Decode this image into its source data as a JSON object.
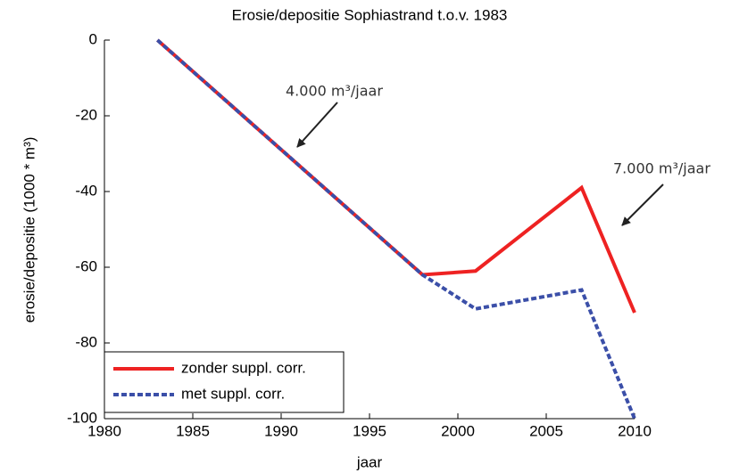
{
  "chart_data": {
    "type": "line",
    "title": "Erosie/depositie Sophiastrand t.o.v. 1983",
    "x_label": "jaar",
    "y_label": "erosie/depositie (1000 * m³)",
    "x": [
      1983,
      1998,
      2001,
      2007,
      2010
    ],
    "series": [
      {
        "name": "zonder suppl. corr.",
        "color": "#ee2222",
        "dash": false,
        "values": [
          0,
          -62,
          -61,
          -39,
          -72
        ]
      },
      {
        "name": "met suppl. corr.",
        "color": "#3b4fa8",
        "dash": true,
        "values": [
          0,
          -62,
          -71,
          -66,
          -100
        ]
      }
    ],
    "xlim": [
      1980,
      2010
    ],
    "xticks": [
      1980,
      1985,
      1990,
      1995,
      2000,
      2005,
      2010
    ],
    "ylim": [
      -100,
      0
    ],
    "yticks": [
      0,
      -20,
      -40,
      -60,
      -80,
      -100
    ],
    "legend": "lower left",
    "annotations": [
      "4.000 m³/jaar",
      "7.000 m³/jaar"
    ]
  }
}
